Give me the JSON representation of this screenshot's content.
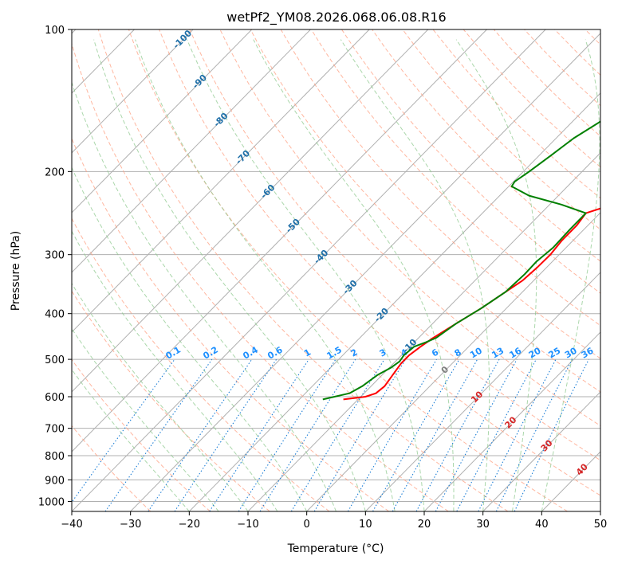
{
  "chart_data": {
    "type": "line",
    "title": "wetPf2_YM08.2026.068.06.08.R16",
    "xlabel": "Temperature (°C)",
    "ylabel": "Pressure (hPa)",
    "xlim": [
      -40,
      50
    ],
    "ylim": [
      1050,
      100
    ],
    "y_scale": "log",
    "x_ticks": [
      -40,
      -30,
      -20,
      -10,
      0,
      10,
      20,
      30,
      40,
      50
    ],
    "y_ticks": [
      100,
      200,
      300,
      400,
      500,
      600,
      700,
      800,
      900,
      1000
    ],
    "isotherm_labels": [
      {
        "t": -100,
        "text": "-100"
      },
      {
        "t": -90,
        "text": "-90"
      },
      {
        "t": -80,
        "text": "-80"
      },
      {
        "t": -70,
        "text": "-70"
      },
      {
        "t": -60,
        "text": "-60"
      },
      {
        "t": -50,
        "text": "-50"
      },
      {
        "t": -40,
        "text": "-40"
      },
      {
        "t": -30,
        "text": "-30"
      },
      {
        "t": -20,
        "text": "-20"
      },
      {
        "t": -10,
        "text": "-10"
      },
      {
        "t": 0,
        "text": "0"
      },
      {
        "t": 10,
        "text": "10"
      },
      {
        "t": 20,
        "text": "20"
      },
      {
        "t": 30,
        "text": "30"
      },
      {
        "t": 40,
        "text": "40"
      }
    ],
    "mixing_ratio_labels": [
      {
        "w": 0.1,
        "text": "0.1"
      },
      {
        "w": 0.2,
        "text": "0.2"
      },
      {
        "w": 0.4,
        "text": "0.4"
      },
      {
        "w": 0.6,
        "text": "0.6"
      },
      {
        "w": 1,
        "text": "1"
      },
      {
        "w": 1.5,
        "text": "1.5"
      },
      {
        "w": 2,
        "text": "2"
      },
      {
        "w": 3,
        "text": "3"
      },
      {
        "w": 4,
        "text": "4"
      },
      {
        "w": 6,
        "text": "6"
      },
      {
        "w": 8,
        "text": "8"
      },
      {
        "w": 10,
        "text": "10"
      },
      {
        "w": 13,
        "text": "13"
      },
      {
        "w": 16,
        "text": "16"
      },
      {
        "w": 20,
        "text": "20"
      },
      {
        "w": 25,
        "text": "25"
      },
      {
        "w": 30,
        "text": "30"
      },
      {
        "w": 36,
        "text": "36"
      }
    ],
    "series": [
      {
        "name": "Temperature",
        "color": "#ff0000",
        "points": [
          [
            608,
            -12.5
          ],
          [
            600,
            -9.2
          ],
          [
            590,
            -8.0
          ],
          [
            570,
            -7.7
          ],
          [
            540,
            -8.2
          ],
          [
            510,
            -8.7
          ],
          [
            490,
            -8.7
          ],
          [
            470,
            -8.2
          ],
          [
            450,
            -7.5
          ],
          [
            420,
            -6.0
          ],
          [
            390,
            -4.3
          ],
          [
            360,
            -2.9
          ],
          [
            340,
            -1.9
          ],
          [
            320,
            -1.6
          ],
          [
            300,
            -1.5
          ],
          [
            280,
            -1.9
          ],
          [
            260,
            -1.9
          ],
          [
            245,
            -2.4
          ],
          [
            235,
            0.7
          ],
          [
            225,
            4.5
          ],
          [
            215,
            7.5
          ],
          [
            205,
            9.5
          ],
          [
            195,
            10.0
          ],
          [
            180,
            12.0
          ],
          [
            165,
            15.0
          ],
          [
            150,
            18.0
          ],
          [
            135,
            21.0
          ],
          [
            125,
            24.0
          ],
          [
            118,
            27.0
          ],
          [
            110,
            31.0
          ],
          [
            104,
            33.0
          ],
          [
            100,
            34.0
          ]
        ]
      },
      {
        "name": "Dewpoint",
        "color": "#008000",
        "points": [
          [
            608,
            -16.0
          ],
          [
            590,
            -12.5
          ],
          [
            570,
            -11.5
          ],
          [
            540,
            -10.8
          ],
          [
            520,
            -9.7
          ],
          [
            505,
            -9.3
          ],
          [
            490,
            -9.6
          ],
          [
            470,
            -9.3
          ],
          [
            460,
            -8.0
          ],
          [
            450,
            -7.0
          ],
          [
            420,
            -6.0
          ],
          [
            390,
            -4.3
          ],
          [
            360,
            -2.9
          ],
          [
            330,
            -2.6
          ],
          [
            310,
            -2.7
          ],
          [
            290,
            -2.2
          ],
          [
            265,
            -2.4
          ],
          [
            245,
            -2.4
          ],
          [
            235,
            -8.0
          ],
          [
            225,
            -15.0
          ],
          [
            215,
            -19.5
          ],
          [
            210,
            -19.8
          ],
          [
            200,
            -19.0
          ],
          [
            185,
            -18.0
          ],
          [
            170,
            -17.0
          ],
          [
            155,
            -15.0
          ],
          [
            140,
            -13.0
          ],
          [
            125,
            -10.0
          ],
          [
            115,
            -8.0
          ],
          [
            105,
            -5.5
          ],
          [
            100,
            -4.0
          ]
        ]
      }
    ],
    "colors": {
      "grid": "#b0b0b0",
      "dry_adiabat": "#ff9f80",
      "moist_adiabat": "#8fc98f",
      "mixing_ratio": "#1e7fd6",
      "isotherm_label_cold": "#1f6fa8",
      "isotherm_label_zero": "#808080",
      "isotherm_label_warm": "#d62728",
      "mixing_ratio_label": "#1e90ff",
      "saturation_curve": "#c8b090"
    }
  }
}
